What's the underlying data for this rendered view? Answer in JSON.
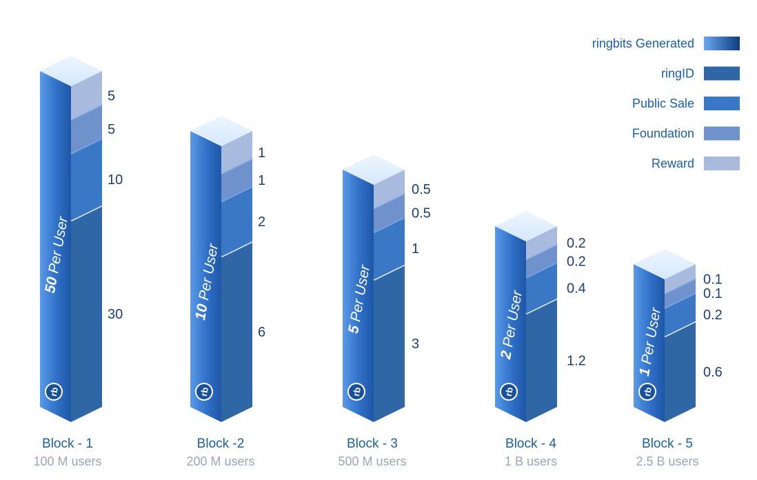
{
  "chart_data": {
    "type": "bar",
    "stacked": true,
    "categories": [
      "Block - 1",
      "Block -2",
      "Block - 3",
      "Block - 4",
      "Block - 5"
    ],
    "category_subtitles": [
      "100 M users",
      "200 M users",
      "500 M users",
      "1 B users",
      "2.5 B users"
    ],
    "per_user_labels": [
      {
        "num": "50",
        "text": " Per User"
      },
      {
        "num": "10",
        "text": " Per User"
      },
      {
        "num": "5",
        "text": " Per User"
      },
      {
        "num": "2",
        "text": " Per User"
      },
      {
        "num": "1",
        "text": " Per User"
      }
    ],
    "series": [
      {
        "name": "ringID",
        "values": [
          30,
          6,
          3,
          1.2,
          0.6
        ],
        "labels": [
          "30",
          "6",
          "3",
          "1.2",
          "0.6"
        ],
        "color": "#2f67a6"
      },
      {
        "name": "Public Sale",
        "values": [
          10,
          2,
          1,
          0.4,
          0.2
        ],
        "labels": [
          "10",
          "2",
          "1",
          "0.4",
          "0.2"
        ],
        "color": "#3a77c4"
      },
      {
        "name": "Foundation",
        "values": [
          5,
          1,
          0.5,
          0.2,
          0.1
        ],
        "labels": [
          "5",
          "1",
          "0.5",
          "0.2",
          "0.1"
        ],
        "color": "#6f92cc"
      },
      {
        "name": "Reward",
        "values": [
          5,
          1,
          0.5,
          0.2,
          0.1
        ],
        "labels": [
          "5",
          "1",
          "0.5",
          "0.2",
          "0.1"
        ],
        "color": "#a8bbdf"
      }
    ],
    "legend": {
      "placement": "top-right",
      "entries": [
        {
          "label": "ringbits Generated",
          "gradient": [
            "#6aa6f2",
            "#0c3d80"
          ]
        },
        {
          "label": "ringID",
          "color": "#2f67a6"
        },
        {
          "label": "Public Sale",
          "color": "#3a77c4"
        },
        {
          "label": "Foundation",
          "color": "#6f92cc"
        },
        {
          "label": "Reward",
          "color": "#a8bbdf"
        }
      ]
    },
    "logo_text": "rb"
  }
}
